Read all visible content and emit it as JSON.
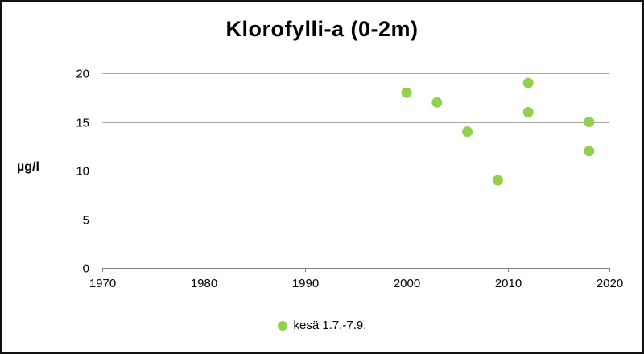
{
  "chart_data": {
    "type": "scatter",
    "title": "Klorofylli-a (0-2m)",
    "xlabel": "",
    "ylabel": "µg/l",
    "xlim": [
      1970,
      2020
    ],
    "ylim": [
      0,
      20
    ],
    "xticks": [
      1970,
      1980,
      1990,
      2000,
      2010,
      2020
    ],
    "yticks": [
      0,
      5,
      10,
      15,
      20
    ],
    "grid": "horizontal",
    "legend_position": "bottom",
    "series": [
      {
        "name": "kesä 1.7.-7.9.",
        "color": "#92d050",
        "points": [
          [
            2000,
            18
          ],
          [
            2003,
            17
          ],
          [
            2006,
            14
          ],
          [
            2009,
            9
          ],
          [
            2012,
            19
          ],
          [
            2012,
            16
          ],
          [
            2018,
            15
          ],
          [
            2018,
            12
          ]
        ]
      }
    ]
  },
  "legend": {
    "label": "kesä 1.7.-7.9."
  },
  "colors": {
    "marker": "#92d050",
    "gridline": "#a6a6a6",
    "axis": "#808080",
    "text": "#000000",
    "frame_border": "#111111"
  }
}
